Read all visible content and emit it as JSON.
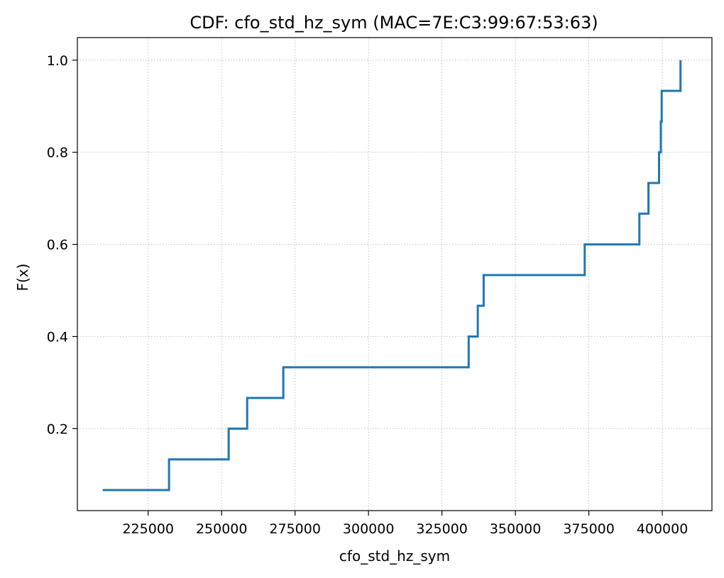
{
  "chart_data": {
    "type": "line",
    "step": true,
    "title": "CDF: cfo_std_hz_sym (MAC=7E:C3:99:67:53:63)",
    "xlabel": "cfo_std_hz_sym",
    "ylabel": "F(x)",
    "xlim": [
      200900,
      416900
    ],
    "ylim": [
      0.022,
      1.049
    ],
    "xticks": [
      225000,
      250000,
      275000,
      300000,
      325000,
      350000,
      375000,
      400000
    ],
    "xtick_labels": [
      "225000",
      "250000",
      "275000",
      "300000",
      "325000",
      "350000",
      "375000",
      "400000"
    ],
    "yticks": [
      0.2,
      0.4,
      0.6,
      0.8,
      1.0
    ],
    "ytick_labels": [
      "0.2",
      "0.4",
      "0.6",
      "0.8",
      "1.0"
    ],
    "grid": true,
    "color": "#1f77b4",
    "series": [
      {
        "x": [
          209500,
          232100,
          252400,
          258700,
          271000,
          334100,
          337200,
          339200,
          373600,
          392200,
          395300,
          398900,
          399500,
          399800,
          406200
        ],
        "y": [
          0.0667,
          0.1333,
          0.2,
          0.2667,
          0.3333,
          0.4,
          0.4667,
          0.5333,
          0.6,
          0.6667,
          0.7333,
          0.8,
          0.8667,
          0.9333,
          1.0
        ]
      }
    ]
  }
}
